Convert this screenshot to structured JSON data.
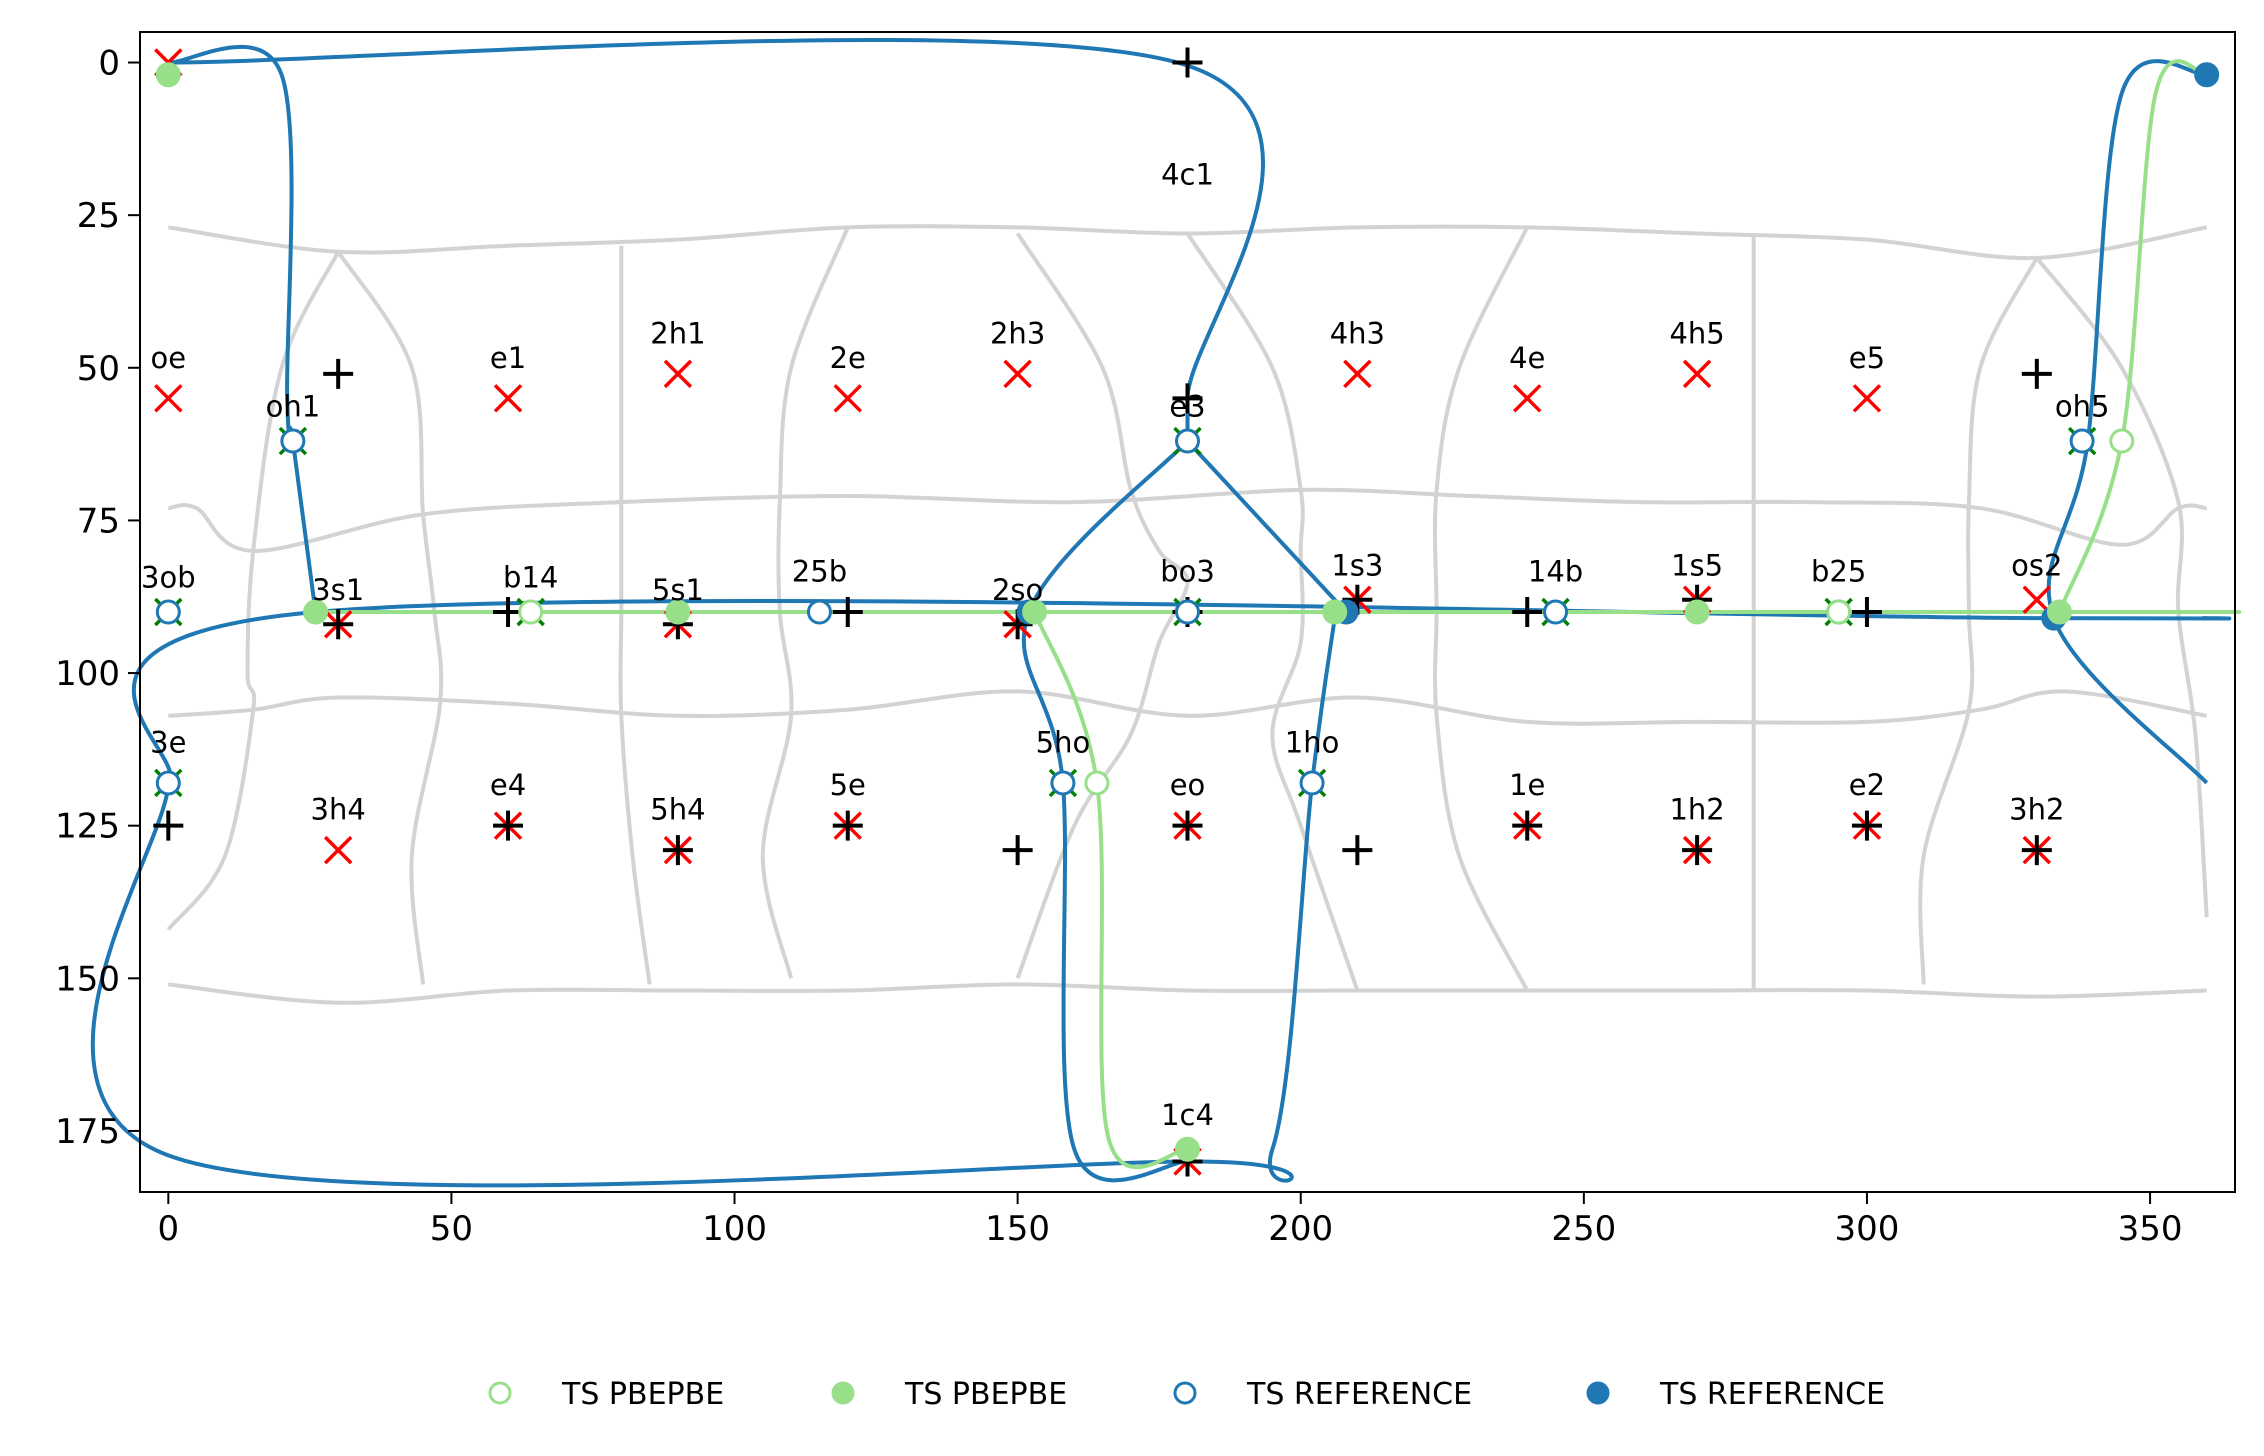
{
  "chart_data": {
    "type": "scatter",
    "title": "",
    "xlabel": "",
    "ylabel": "",
    "xlim": [
      -5,
      365
    ],
    "ylim": [
      185,
      -5
    ],
    "y_inverted": true,
    "x_ticks": [
      0,
      50,
      100,
      150,
      200,
      250,
      300,
      350
    ],
    "y_ticks": [
      0,
      25,
      50,
      75,
      100,
      125,
      150,
      175
    ],
    "grid": false,
    "legend_position": "bottom-center",
    "colors": {
      "pbepbe": "#98df8a",
      "reference": "#1f77b4",
      "cell_lines": "#d3d3d3",
      "red_marker": "#ff0000",
      "green_marker": "#008000",
      "black_marker": "#000000"
    },
    "legend": [
      {
        "label": "TS PBEPBE",
        "style": "open",
        "color": "#98df8a"
      },
      {
        "label": "TS PBEPBE",
        "style": "filled",
        "color": "#98df8a"
      },
      {
        "label": "TS REFERENCE",
        "style": "open",
        "color": "#1f77b4"
      },
      {
        "label": "TS REFERENCE",
        "style": "filled",
        "color": "#1f77b4"
      }
    ],
    "labels": [
      {
        "text": "4c1",
        "x": 180,
        "y": 20
      },
      {
        "text": "oe",
        "x": 0,
        "y": 50
      },
      {
        "text": "e1",
        "x": 60,
        "y": 50
      },
      {
        "text": "2h1",
        "x": 90,
        "y": 46
      },
      {
        "text": "2e",
        "x": 120,
        "y": 50
      },
      {
        "text": "2h3",
        "x": 150,
        "y": 46
      },
      {
        "text": "4h3",
        "x": 210,
        "y": 46
      },
      {
        "text": "4e",
        "x": 240,
        "y": 50
      },
      {
        "text": "4h5",
        "x": 270,
        "y": 46
      },
      {
        "text": "e5",
        "x": 300,
        "y": 50
      },
      {
        "text": "oh1",
        "x": 22,
        "y": 58
      },
      {
        "text": "e3",
        "x": 180,
        "y": 58
      },
      {
        "text": "oh5",
        "x": 338,
        "y": 58
      },
      {
        "text": "3ob",
        "x": 0,
        "y": 86
      },
      {
        "text": "3s1",
        "x": 30,
        "y": 88
      },
      {
        "text": "b14",
        "x": 64,
        "y": 86
      },
      {
        "text": "5s1",
        "x": 90,
        "y": 88
      },
      {
        "text": "25b",
        "x": 115,
        "y": 85
      },
      {
        "text": "2so",
        "x": 150,
        "y": 88
      },
      {
        "text": "bo3",
        "x": 180,
        "y": 85
      },
      {
        "text": "1s3",
        "x": 210,
        "y": 84
      },
      {
        "text": "14b",
        "x": 245,
        "y": 85
      },
      {
        "text": "1s5",
        "x": 270,
        "y": 84
      },
      {
        "text": "b25",
        "x": 295,
        "y": 85
      },
      {
        "text": "os2",
        "x": 330,
        "y": 84
      },
      {
        "text": "3e",
        "x": 0,
        "y": 113
      },
      {
        "text": "5ho",
        "x": 158,
        "y": 113
      },
      {
        "text": "1ho",
        "x": 202,
        "y": 113
      },
      {
        "text": "e4",
        "x": 60,
        "y": 120
      },
      {
        "text": "5e",
        "x": 120,
        "y": 120
      },
      {
        "text": "eo",
        "x": 180,
        "y": 120
      },
      {
        "text": "1e",
        "x": 240,
        "y": 120
      },
      {
        "text": "e2",
        "x": 300,
        "y": 120
      },
      {
        "text": "3h4",
        "x": 30,
        "y": 124
      },
      {
        "text": "5h4",
        "x": 90,
        "y": 124
      },
      {
        "text": "1h2",
        "x": 270,
        "y": 124
      },
      {
        "text": "3h2",
        "x": 330,
        "y": 124
      },
      {
        "text": "1c4",
        "x": 180,
        "y": 174
      }
    ],
    "series": [
      {
        "name": "TS REFERENCE",
        "kind": "path",
        "color": "#1f77b4",
        "segments": [
          [
            [
              0,
              0
            ],
            [
              180,
              0.5
            ],
            [
              180,
              55
            ],
            [
              180,
              62
            ]
          ],
          [
            [
              0,
              0
            ],
            [
              20,
              2
            ],
            [
              21,
              55
            ],
            [
              22,
              62
            ],
            [
              26,
              90
            ]
          ],
          [
            [
              0,
              118
            ],
            [
              26,
              90
            ],
            [
              330,
              91
            ],
            [
              360,
              91
            ]
          ],
          [
            [
              0,
              118
            ],
            [
              0,
              179
            ],
            [
              180,
              180
            ],
            [
              195,
              178
            ],
            [
              202,
              118
            ],
            [
              206,
              91
            ]
          ],
          [
            [
              180,
              62
            ],
            [
              152,
              90
            ],
            [
              158,
              118
            ],
            [
              160,
              178
            ],
            [
              180,
              180
            ]
          ],
          [
            [
              180,
              62
            ],
            [
              208,
              90
            ]
          ],
          [
            [
              360,
              2
            ],
            [
              345,
              5
            ],
            [
              339,
              62
            ],
            [
              333,
              91
            ],
            [
              360,
              118
            ]
          ]
        ]
      },
      {
        "name": "TS PBEPBE",
        "kind": "path",
        "color": "#98df8a",
        "segments": [
          [
            [
              26,
              90
            ],
            [
              333,
              90
            ],
            [
              360,
              90
            ]
          ],
          [
            [
              153,
              90
            ],
            [
              164,
              118
            ],
            [
              166,
              176
            ],
            [
              180,
              178
            ]
          ],
          [
            [
              360,
              2
            ],
            [
              351,
              5
            ],
            [
              345,
              62
            ],
            [
              334,
              90
            ]
          ]
        ]
      },
      {
        "name": "TS REFERENCE",
        "marker": "open-circle",
        "color": "#1f77b4",
        "points": [
          [
            22,
            62
          ],
          [
            180,
            62
          ],
          [
            338,
            62
          ],
          [
            0,
            90
          ],
          [
            115,
            90
          ],
          [
            180,
            90
          ],
          [
            245,
            90
          ],
          [
            295,
            90
          ],
          [
            0,
            118
          ],
          [
            158,
            118
          ],
          [
            202,
            118
          ]
        ]
      },
      {
        "name": "TS REFERENCE",
        "marker": "filled-circle",
        "color": "#1f77b4",
        "points": [
          [
            360,
            2
          ],
          [
            152,
            90
          ],
          [
            208,
            90
          ],
          [
            333,
            91
          ]
        ]
      },
      {
        "name": "TS PBEPBE",
        "marker": "open-circle",
        "color": "#98df8a",
        "points": [
          [
            345,
            62
          ],
          [
            64,
            90
          ],
          [
            295,
            90
          ],
          [
            164,
            118
          ]
        ]
      },
      {
        "name": "TS PBEPBE",
        "marker": "filled-circle",
        "color": "#98df8a",
        "points": [
          [
            0,
            2
          ],
          [
            26,
            90
          ],
          [
            90,
            90
          ],
          [
            153,
            90
          ],
          [
            206,
            90
          ],
          [
            270,
            90
          ],
          [
            334,
            90
          ],
          [
            180,
            178
          ]
        ]
      },
      {
        "name": "",
        "marker": "red-x",
        "color": "#ff0000",
        "points": [
          [
            0,
            0
          ],
          [
            0,
            55
          ],
          [
            60,
            55
          ],
          [
            90,
            51
          ],
          [
            120,
            55
          ],
          [
            150,
            51
          ],
          [
            210,
            51
          ],
          [
            240,
            55
          ],
          [
            270,
            51
          ],
          [
            300,
            55
          ],
          [
            330,
            88
          ],
          [
            30,
            92
          ],
          [
            90,
            92
          ],
          [
            150,
            92
          ],
          [
            210,
            88
          ],
          [
            270,
            88
          ],
          [
            60,
            125
          ],
          [
            120,
            125
          ],
          [
            180,
            125
          ],
          [
            240,
            125
          ],
          [
            300,
            125
          ],
          [
            30,
            129
          ],
          [
            90,
            129
          ],
          [
            270,
            129
          ],
          [
            330,
            129
          ],
          [
            180,
            180
          ]
        ]
      },
      {
        "name": "",
        "marker": "green-x",
        "color": "#008000",
        "points": [
          [
            22,
            62
          ],
          [
            180,
            62
          ],
          [
            338,
            62
          ],
          [
            0,
            90
          ],
          [
            64,
            90
          ],
          [
            180,
            90
          ],
          [
            245,
            90
          ],
          [
            295,
            90
          ],
          [
            0,
            118
          ],
          [
            158,
            118
          ],
          [
            202,
            118
          ]
        ]
      },
      {
        "name": "",
        "marker": "plus",
        "color": "#000000",
        "points": [
          [
            180,
            0
          ],
          [
            180,
            55
          ],
          [
            30,
            51
          ],
          [
            330,
            51
          ],
          [
            60,
            90
          ],
          [
            120,
            90
          ],
          [
            180,
            90
          ],
          [
            240,
            90
          ],
          [
            300,
            90
          ],
          [
            30,
            92
          ],
          [
            90,
            92
          ],
          [
            150,
            92
          ],
          [
            210,
            88
          ],
          [
            270,
            88
          ],
          [
            0,
            125
          ],
          [
            150,
            129
          ],
          [
            210,
            129
          ],
          [
            60,
            125
          ],
          [
            120,
            125
          ],
          [
            180,
            125
          ],
          [
            240,
            125
          ],
          [
            300,
            125
          ],
          [
            90,
            129
          ],
          [
            270,
            129
          ],
          [
            330,
            129
          ],
          [
            180,
            180
          ]
        ]
      }
    ],
    "cell_lines": [
      [
        [
          0,
          27
        ],
        [
          30,
          31
        ],
        [
          60,
          30
        ],
        [
          90,
          29
        ],
        [
          120,
          27
        ],
        [
          150,
          27
        ],
        [
          180,
          28
        ],
        [
          210,
          27
        ],
        [
          240,
          27
        ],
        [
          270,
          28
        ],
        [
          300,
          29
        ],
        [
          330,
          32
        ],
        [
          360,
          27
        ]
      ],
      [
        [
          0,
          73
        ],
        [
          5,
          73
        ],
        [
          15,
          80
        ],
        [
          45,
          74
        ],
        [
          80,
          72
        ],
        [
          120,
          71
        ],
        [
          160,
          72
        ],
        [
          200,
          70
        ],
        [
          230,
          71
        ],
        [
          260,
          72
        ],
        [
          290,
          72
        ],
        [
          320,
          73
        ],
        [
          345,
          79
        ],
        [
          355,
          73
        ],
        [
          360,
          73
        ]
      ],
      [
        [
          0,
          107
        ],
        [
          15,
          106
        ],
        [
          30,
          104
        ],
        [
          60,
          105
        ],
        [
          90,
          107
        ],
        [
          120,
          106
        ],
        [
          150,
          103
        ],
        [
          180,
          107
        ],
        [
          210,
          104
        ],
        [
          240,
          108
        ],
        [
          270,
          108
        ],
        [
          300,
          108
        ],
        [
          320,
          106
        ],
        [
          335,
          103
        ],
        [
          360,
          107
        ]
      ],
      [
        [
          0,
          151
        ],
        [
          30,
          154
        ],
        [
          60,
          152
        ],
        [
          90,
          152
        ],
        [
          120,
          152
        ],
        [
          150,
          151
        ],
        [
          180,
          152
        ],
        [
          210,
          152
        ],
        [
          240,
          152
        ],
        [
          270,
          152
        ],
        [
          300,
          152
        ],
        [
          330,
          153
        ],
        [
          360,
          152
        ]
      ],
      [
        [
          30,
          31
        ],
        [
          20,
          50
        ],
        [
          15,
          80
        ],
        [
          14,
          100
        ],
        [
          15,
          106
        ],
        [
          10,
          130
        ],
        [
          0,
          142
        ]
      ],
      [
        [
          30,
          31
        ],
        [
          43,
          50
        ],
        [
          45,
          74
        ],
        [
          47,
          90
        ],
        [
          48,
          105
        ],
        [
          43,
          130
        ],
        [
          45,
          151
        ]
      ],
      [
        [
          80,
          30
        ],
        [
          80,
          50
        ],
        [
          80,
          72
        ],
        [
          80,
          90
        ],
        [
          80,
          107
        ],
        [
          82,
          130
        ],
        [
          85,
          151
        ]
      ],
      [
        [
          120,
          27
        ],
        [
          110,
          50
        ],
        [
          108,
          72
        ],
        [
          108,
          90
        ],
        [
          110,
          107
        ],
        [
          105,
          130
        ],
        [
          110,
          150
        ]
      ],
      [
        [
          150,
          28
        ],
        [
          165,
          50
        ],
        [
          170,
          70
        ],
        [
          175,
          80
        ],
        [
          180,
          85
        ],
        [
          175,
          95
        ],
        [
          170,
          110
        ],
        [
          160,
          125
        ],
        [
          150,
          150
        ]
      ],
      [
        [
          180,
          28
        ],
        [
          195,
          50
        ],
        [
          200,
          70
        ],
        [
          200,
          80
        ],
        [
          200,
          95
        ],
        [
          195,
          110
        ],
        [
          200,
          125
        ],
        [
          210,
          152
        ]
      ],
      [
        [
          240,
          27
        ],
        [
          228,
          50
        ],
        [
          224,
          70
        ],
        [
          224,
          90
        ],
        [
          224,
          107
        ],
        [
          228,
          130
        ],
        [
          240,
          152
        ]
      ],
      [
        [
          280,
          28
        ],
        [
          280,
          50
        ],
        [
          280,
          72
        ],
        [
          280,
          90
        ],
        [
          280,
          108
        ],
        [
          280,
          130
        ],
        [
          280,
          152
        ]
      ],
      [
        [
          330,
          32
        ],
        [
          320,
          50
        ],
        [
          318,
          72
        ],
        [
          318,
          90
        ],
        [
          318,
          106
        ],
        [
          310,
          130
        ],
        [
          310,
          151
        ]
      ],
      [
        [
          330,
          32
        ],
        [
          345,
          50
        ],
        [
          355,
          72
        ],
        [
          355,
          90
        ],
        [
          358,
          110
        ],
        [
          360,
          140
        ]
      ]
    ]
  }
}
